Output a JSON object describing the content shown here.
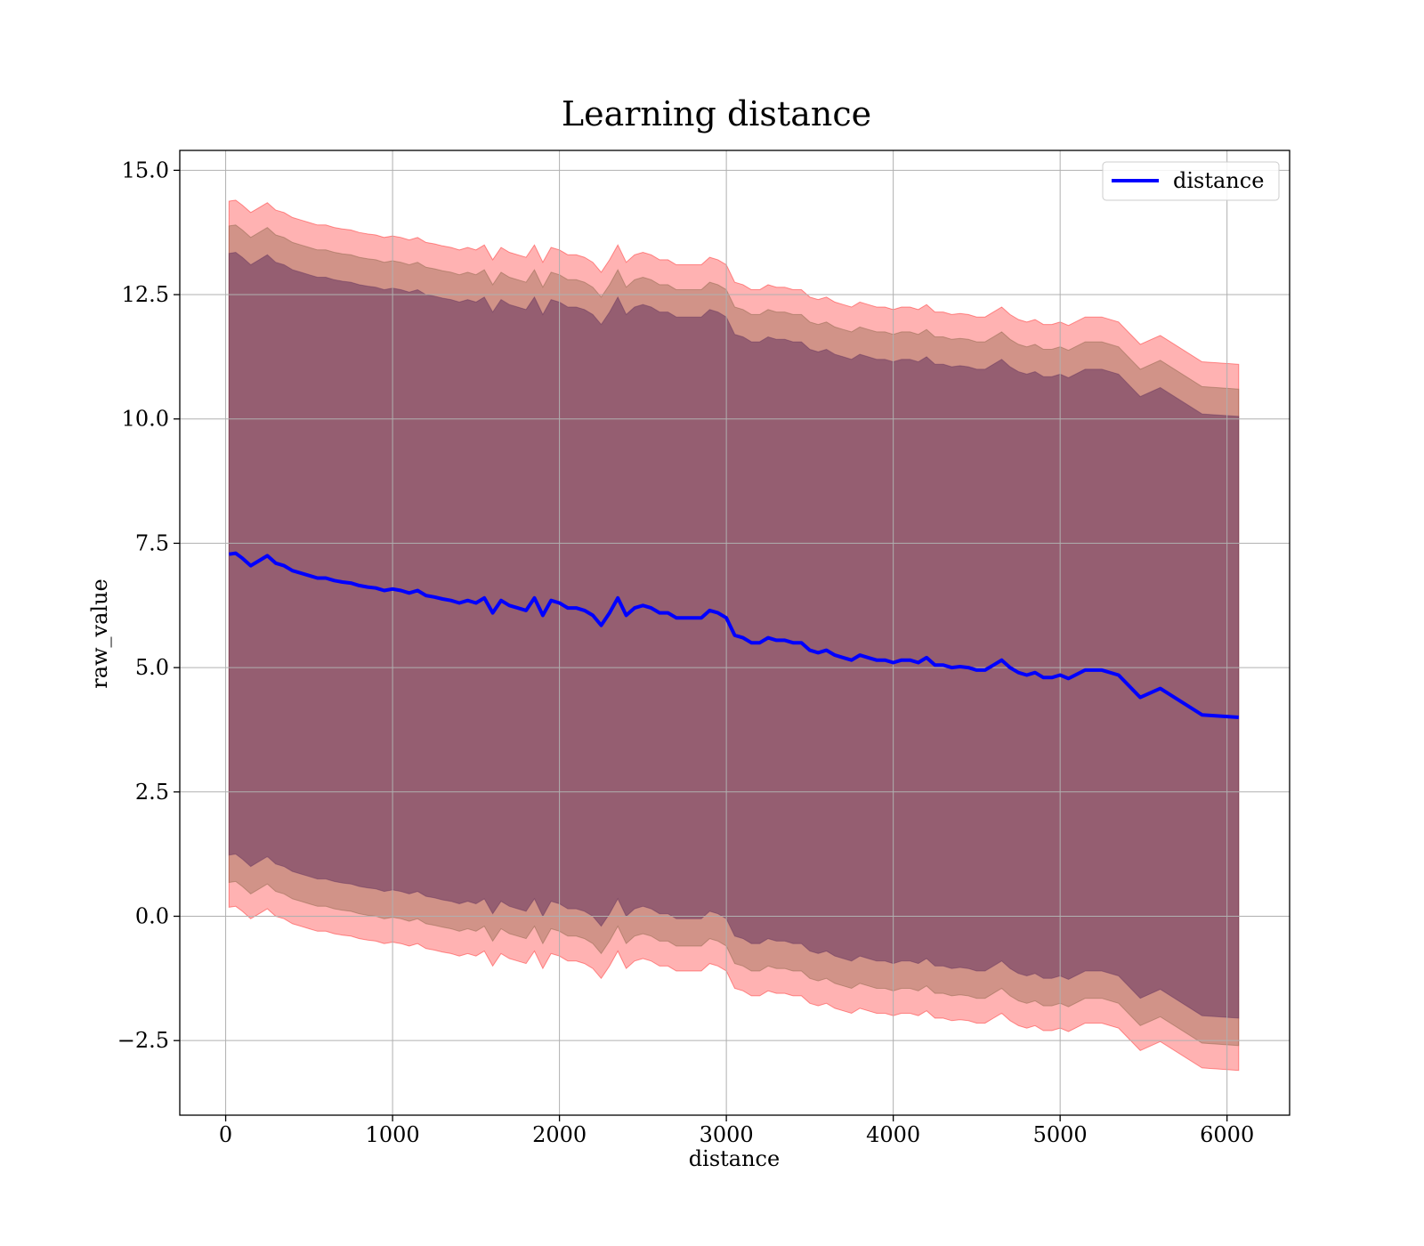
{
  "chart_data": {
    "type": "line",
    "title": "Learning distance",
    "xlabel": "distance",
    "ylabel": "raw_value",
    "xlim": [
      -275,
      6375
    ],
    "ylim": [
      -4.0,
      15.4
    ],
    "x_ticks": [
      0,
      1000,
      2000,
      3000,
      4000,
      5000,
      6000
    ],
    "y_ticks": [
      -2.5,
      0.0,
      2.5,
      5.0,
      7.5,
      10.0,
      12.5,
      15.0
    ],
    "x_tick_labels": [
      "0",
      "1000",
      "2000",
      "3000",
      "4000",
      "5000",
      "6000"
    ],
    "y_tick_labels": [
      "−2.5",
      "0.0",
      "2.5",
      "5.0",
      "7.5",
      "10.0",
      "12.5",
      "15.0"
    ],
    "grid": true,
    "legend": {
      "position": "top-right",
      "entries": [
        "distance"
      ]
    },
    "series": [
      {
        "name": "distance",
        "color": "#0000ff",
        "x": [
          20,
          60,
          100,
          150,
          200,
          250,
          300,
          350,
          400,
          450,
          500,
          550,
          600,
          650,
          700,
          750,
          800,
          850,
          900,
          950,
          1000,
          1050,
          1100,
          1150,
          1200,
          1250,
          1300,
          1350,
          1400,
          1450,
          1500,
          1550,
          1600,
          1650,
          1700,
          1750,
          1800,
          1850,
          1900,
          1950,
          2000,
          2050,
          2100,
          2150,
          2200,
          2250,
          2300,
          2350,
          2400,
          2450,
          2500,
          2550,
          2600,
          2650,
          2700,
          2750,
          2800,
          2850,
          2900,
          2950,
          3000,
          3050,
          3100,
          3150,
          3200,
          3250,
          3300,
          3350,
          3400,
          3450,
          3500,
          3550,
          3600,
          3650,
          3700,
          3750,
          3800,
          3850,
          3900,
          3950,
          4000,
          4050,
          4100,
          4150,
          4200,
          4250,
          4300,
          4350,
          4400,
          4450,
          4500,
          4550,
          4600,
          4650,
          4700,
          4750,
          4800,
          4850,
          4900,
          4950,
          5000,
          5050,
          5150,
          5250,
          5350,
          5480,
          5600,
          5850,
          6070
        ],
        "y": [
          7.28,
          7.3,
          7.2,
          7.05,
          7.15,
          7.25,
          7.1,
          7.05,
          6.95,
          6.9,
          6.85,
          6.8,
          6.8,
          6.75,
          6.72,
          6.7,
          6.65,
          6.62,
          6.6,
          6.55,
          6.58,
          6.55,
          6.5,
          6.55,
          6.45,
          6.42,
          6.38,
          6.35,
          6.3,
          6.35,
          6.3,
          6.4,
          6.1,
          6.35,
          6.25,
          6.2,
          6.15,
          6.4,
          6.05,
          6.35,
          6.3,
          6.2,
          6.2,
          6.15,
          6.05,
          5.85,
          6.1,
          6.4,
          6.05,
          6.2,
          6.25,
          6.2,
          6.1,
          6.1,
          6.0,
          6.0,
          6.0,
          6.0,
          6.15,
          6.1,
          6.0,
          5.65,
          5.6,
          5.5,
          5.5,
          5.6,
          5.55,
          5.55,
          5.5,
          5.5,
          5.35,
          5.3,
          5.35,
          5.25,
          5.2,
          5.15,
          5.25,
          5.2,
          5.15,
          5.15,
          5.1,
          5.15,
          5.15,
          5.1,
          5.2,
          5.05,
          5.05,
          5.0,
          5.02,
          5.0,
          4.95,
          4.95,
          5.05,
          5.15,
          5.0,
          4.9,
          4.85,
          4.9,
          4.8,
          4.8,
          4.85,
          4.78,
          4.95,
          4.95,
          4.85,
          4.4,
          4.58,
          4.05,
          4.0
        ]
      }
    ],
    "bands": [
      {
        "color": "#ff0000",
        "opacity": 0.3,
        "upper_offset": 7.1,
        "lower_offset": -7.1
      },
      {
        "color": "#7a5a3a",
        "opacity": 0.35,
        "upper_offset": 6.6,
        "lower_offset": -6.6
      },
      {
        "color": "#5a2a5a",
        "opacity": 0.5,
        "upper_offset": 6.05,
        "lower_offset": -6.05
      }
    ]
  }
}
